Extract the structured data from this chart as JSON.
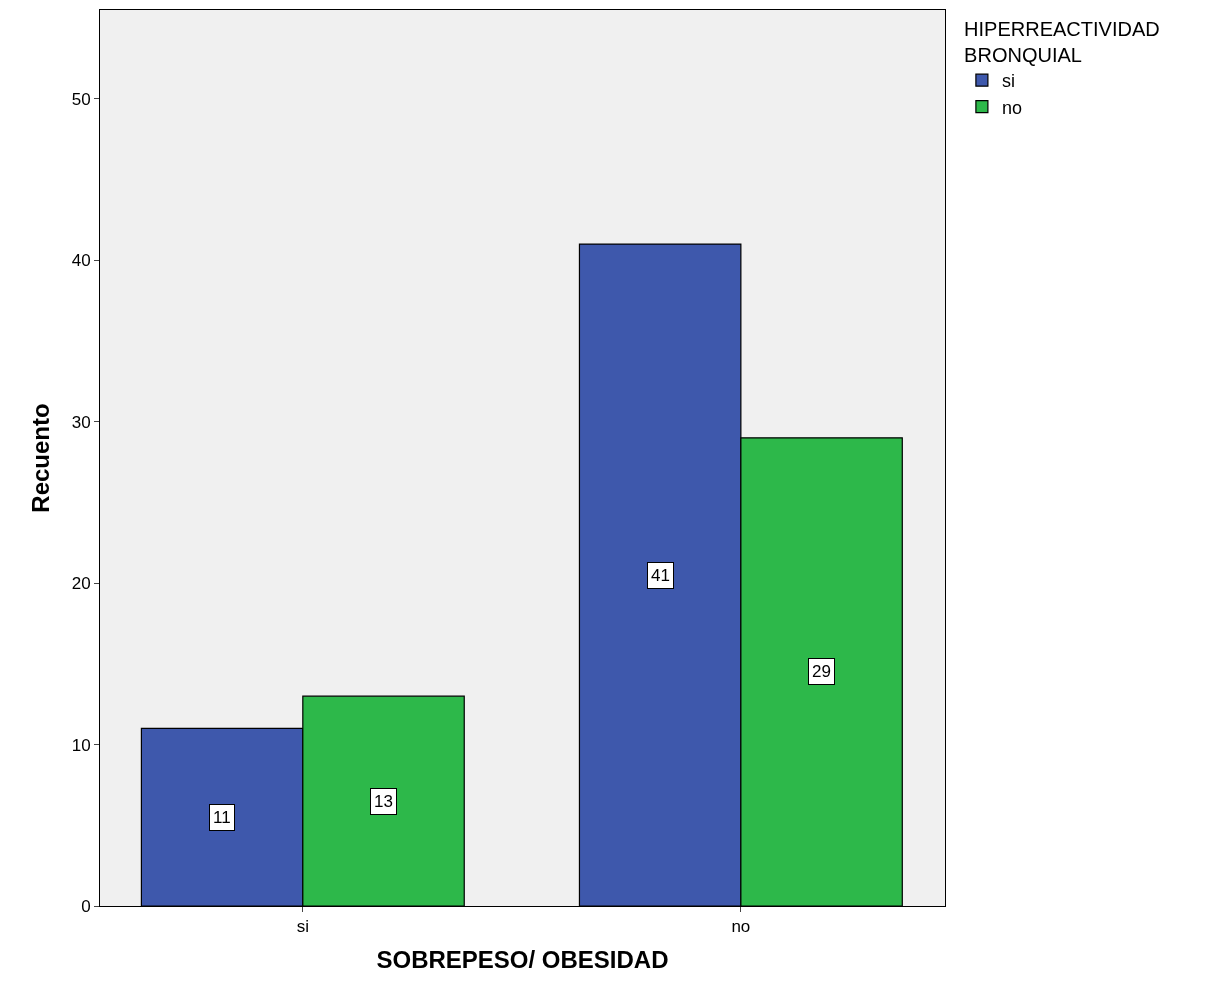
{
  "chart_data": {
    "type": "bar",
    "xlabel": "SOBREPESO/ OBESIDAD",
    "ylabel": "Recuento",
    "legend_title": "HIPERREACTIVIDAD BRONQUIAL",
    "categories": [
      "si",
      "no"
    ],
    "series": [
      {
        "name": "si",
        "color": "#3e58ac",
        "values": [
          11,
          41
        ]
      },
      {
        "name": "no",
        "color": "#2db84a",
        "values": [
          13,
          29
        ]
      }
    ],
    "ylim": [
      0,
      55.5
    ],
    "yticks": [
      0,
      10,
      20,
      30,
      40,
      50
    ],
    "grid": false,
    "legend": "top right",
    "data_labels": true
  }
}
